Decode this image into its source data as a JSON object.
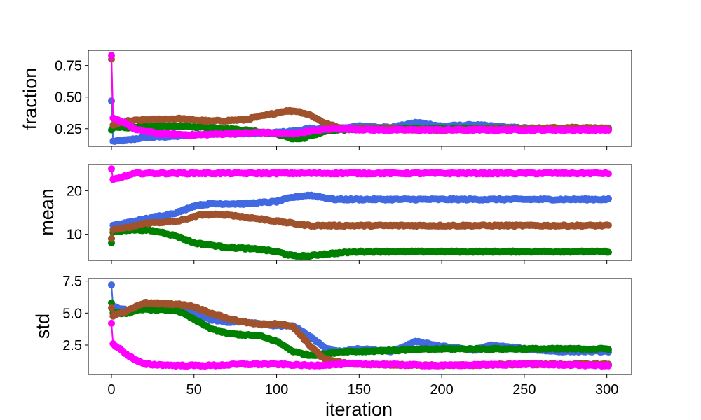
{
  "colors": {
    "blue": "#4169e1",
    "green": "#008000",
    "brown": "#a0522d",
    "magenta": "#ff00ff"
  },
  "chart_data": [
    {
      "type": "line",
      "ylabel": "fraction",
      "xlabel": "",
      "xlim": [
        -14,
        315
      ],
      "ylim": [
        0.11,
        0.87
      ],
      "xticks": [
        0,
        50,
        100,
        150,
        200,
        250,
        300
      ],
      "yticks": [
        0.25,
        0.5,
        0.75
      ],
      "ytick_labels": [
        "0.25",
        "0.50",
        "0.75"
      ],
      "show_xtick_labels": false,
      "series": [
        {
          "color": "#4169e1",
          "points": [
            [
              0,
              0.47
            ],
            [
              1,
              0.15
            ],
            [
              10,
              0.16
            ],
            [
              20,
              0.18
            ],
            [
              40,
              0.19
            ],
            [
              60,
              0.21
            ],
            [
              80,
              0.21
            ],
            [
              100,
              0.22
            ],
            [
              110,
              0.23
            ],
            [
              120,
              0.25
            ],
            [
              135,
              0.25
            ],
            [
              150,
              0.27
            ],
            [
              170,
              0.26
            ],
            [
              185,
              0.3
            ],
            [
              200,
              0.27
            ],
            [
              220,
              0.28
            ],
            [
              240,
              0.26
            ],
            [
              260,
              0.25
            ],
            [
              280,
              0.25
            ],
            [
              300,
              0.25
            ]
          ]
        },
        {
          "color": "#008000",
          "points": [
            [
              0,
              0.24
            ],
            [
              1,
              0.26
            ],
            [
              10,
              0.26
            ],
            [
              20,
              0.27
            ],
            [
              40,
              0.27
            ],
            [
              60,
              0.26
            ],
            [
              80,
              0.24
            ],
            [
              100,
              0.21
            ],
            [
              110,
              0.17
            ],
            [
              115,
              0.17
            ],
            [
              120,
              0.19
            ],
            [
              130,
              0.23
            ],
            [
              150,
              0.25
            ],
            [
              200,
              0.25
            ],
            [
              250,
              0.25
            ],
            [
              300,
              0.25
            ]
          ]
        },
        {
          "color": "#a0522d",
          "points": [
            [
              0,
              0.8
            ],
            [
              1,
              0.28
            ],
            [
              10,
              0.31
            ],
            [
              20,
              0.32
            ],
            [
              40,
              0.33
            ],
            [
              60,
              0.31
            ],
            [
              80,
              0.32
            ],
            [
              95,
              0.36
            ],
            [
              105,
              0.39
            ],
            [
              112,
              0.39
            ],
            [
              120,
              0.36
            ],
            [
              130,
              0.29
            ],
            [
              140,
              0.25
            ],
            [
              160,
              0.25
            ],
            [
              200,
              0.24
            ],
            [
              250,
              0.25
            ],
            [
              280,
              0.26
            ],
            [
              300,
              0.25
            ]
          ]
        },
        {
          "color": "#ff00ff",
          "points": [
            [
              0,
              0.83
            ],
            [
              1,
              0.33
            ],
            [
              8,
              0.3
            ],
            [
              15,
              0.24
            ],
            [
              30,
              0.21
            ],
            [
              50,
              0.2
            ],
            [
              70,
              0.21
            ],
            [
              90,
              0.22
            ],
            [
              110,
              0.21
            ],
            [
              120,
              0.23
            ],
            [
              135,
              0.25
            ],
            [
              160,
              0.24
            ],
            [
              200,
              0.24
            ],
            [
              250,
              0.24
            ],
            [
              300,
              0.24
            ]
          ]
        }
      ]
    },
    {
      "type": "line",
      "ylabel": "mean",
      "xlabel": "",
      "xlim": [
        -14,
        315
      ],
      "ylim": [
        4,
        26
      ],
      "xticks": [
        0,
        50,
        100,
        150,
        200,
        250,
        300
      ],
      "yticks": [
        10,
        20
      ],
      "ytick_labels": [
        "10",
        "20"
      ],
      "show_xtick_labels": false,
      "series": [
        {
          "color": "#4169e1",
          "points": [
            [
              0,
              9
            ],
            [
              1,
              12
            ],
            [
              20,
              13.5
            ],
            [
              40,
              15
            ],
            [
              50,
              16.5
            ],
            [
              60,
              17
            ],
            [
              80,
              17
            ],
            [
              100,
              17.5
            ],
            [
              110,
              18.5
            ],
            [
              120,
              19
            ],
            [
              135,
              18
            ],
            [
              150,
              18
            ],
            [
              200,
              18
            ],
            [
              250,
              18
            ],
            [
              300,
              18
            ]
          ]
        },
        {
          "color": "#008000",
          "points": [
            [
              0,
              8
            ],
            [
              1,
              10.5
            ],
            [
              10,
              11
            ],
            [
              20,
              11
            ],
            [
              30,
              10.5
            ],
            [
              40,
              9.5
            ],
            [
              50,
              8
            ],
            [
              70,
              7
            ],
            [
              90,
              6.5
            ],
            [
              100,
              6
            ],
            [
              110,
              5
            ],
            [
              120,
              5
            ],
            [
              130,
              5.5
            ],
            [
              150,
              6
            ],
            [
              200,
              6
            ],
            [
              250,
              6
            ],
            [
              300,
              6
            ]
          ]
        },
        {
          "color": "#a0522d",
          "points": [
            [
              0,
              9
            ],
            [
              1,
              11
            ],
            [
              10,
              11.5
            ],
            [
              20,
              12.5
            ],
            [
              40,
              13
            ],
            [
              50,
              14
            ],
            [
              55,
              14.5
            ],
            [
              70,
              14.5
            ],
            [
              90,
              13.5
            ],
            [
              110,
              12.5
            ],
            [
              120,
              12
            ],
            [
              130,
              12
            ],
            [
              150,
              12
            ],
            [
              200,
              12
            ],
            [
              250,
              12
            ],
            [
              300,
              12
            ]
          ]
        },
        {
          "color": "#ff00ff",
          "points": [
            [
              0,
              25
            ],
            [
              1,
              22.5
            ],
            [
              5,
              23
            ],
            [
              10,
              23.5
            ],
            [
              15,
              24
            ],
            [
              50,
              24
            ],
            [
              100,
              24
            ],
            [
              150,
              24
            ],
            [
              200,
              24
            ],
            [
              250,
              24
            ],
            [
              300,
              24
            ]
          ]
        }
      ]
    },
    {
      "type": "line",
      "ylabel": "std",
      "xlabel": "iteration",
      "xlim": [
        -14,
        315
      ],
      "ylim": [
        0.2,
        7.7
      ],
      "xticks": [
        0,
        50,
        100,
        150,
        200,
        250,
        300
      ],
      "xtick_labels": [
        "0",
        "50",
        "100",
        "150",
        "200",
        "250",
        "300"
      ],
      "yticks": [
        2.5,
        5.0,
        7.5
      ],
      "ytick_labels": [
        "2.5",
        "5.0",
        "7.5"
      ],
      "show_xtick_labels": true,
      "series": [
        {
          "color": "#4169e1",
          "points": [
            [
              0,
              7.2
            ],
            [
              1,
              5.5
            ],
            [
              10,
              5.2
            ],
            [
              20,
              5.5
            ],
            [
              40,
              5.5
            ],
            [
              50,
              5.0
            ],
            [
              60,
              4.5
            ],
            [
              70,
              4.3
            ],
            [
              80,
              4.3
            ],
            [
              90,
              4.2
            ],
            [
              100,
              4.0
            ],
            [
              110,
              4.0
            ],
            [
              120,
              3.2
            ],
            [
              130,
              2.2
            ],
            [
              140,
              2.0
            ],
            [
              150,
              2.2
            ],
            [
              170,
              2.0
            ],
            [
              185,
              2.8
            ],
            [
              200,
              2.4
            ],
            [
              220,
              2.1
            ],
            [
              230,
              2.5
            ],
            [
              250,
              2.2
            ],
            [
              270,
              2.0
            ],
            [
              300,
              2.0
            ]
          ]
        },
        {
          "color": "#008000",
          "points": [
            [
              0,
              5.8
            ],
            [
              1,
              5.0
            ],
            [
              10,
              5.0
            ],
            [
              20,
              5.3
            ],
            [
              40,
              5.2
            ],
            [
              50,
              4.5
            ],
            [
              60,
              3.8
            ],
            [
              70,
              3.4
            ],
            [
              90,
              3.2
            ],
            [
              100,
              2.8
            ],
            [
              110,
              2.0
            ],
            [
              120,
              1.7
            ],
            [
              130,
              1.8
            ],
            [
              140,
              2.0
            ],
            [
              150,
              2.0
            ],
            [
              200,
              2.2
            ],
            [
              250,
              2.2
            ],
            [
              300,
              2.2
            ]
          ]
        },
        {
          "color": "#a0522d",
          "points": [
            [
              0,
              5.4
            ],
            [
              1,
              4.8
            ],
            [
              10,
              5.2
            ],
            [
              20,
              5.8
            ],
            [
              40,
              5.7
            ],
            [
              50,
              5.5
            ],
            [
              60,
              5.0
            ],
            [
              70,
              4.6
            ],
            [
              80,
              4.3
            ],
            [
              90,
              4.1
            ],
            [
              100,
              4.2
            ],
            [
              110,
              3.9
            ],
            [
              120,
              2.5
            ],
            [
              128,
              1.5
            ],
            [
              135,
              1.2
            ],
            [
              150,
              1.0
            ],
            [
              200,
              0.9
            ],
            [
              250,
              1.0
            ],
            [
              300,
              1.0
            ]
          ]
        },
        {
          "color": "#ff00ff",
          "points": [
            [
              0,
              4.2
            ],
            [
              1,
              2.6
            ],
            [
              5,
              2.2
            ],
            [
              10,
              1.7
            ],
            [
              15,
              1.3
            ],
            [
              20,
              1.0
            ],
            [
              40,
              0.9
            ],
            [
              60,
              0.9
            ],
            [
              80,
              1.0
            ],
            [
              100,
              1.0
            ],
            [
              120,
              0.9
            ],
            [
              140,
              1.0
            ],
            [
              160,
              1.0
            ],
            [
              200,
              0.9
            ],
            [
              250,
              1.0
            ],
            [
              300,
              0.9
            ]
          ]
        }
      ]
    }
  ]
}
